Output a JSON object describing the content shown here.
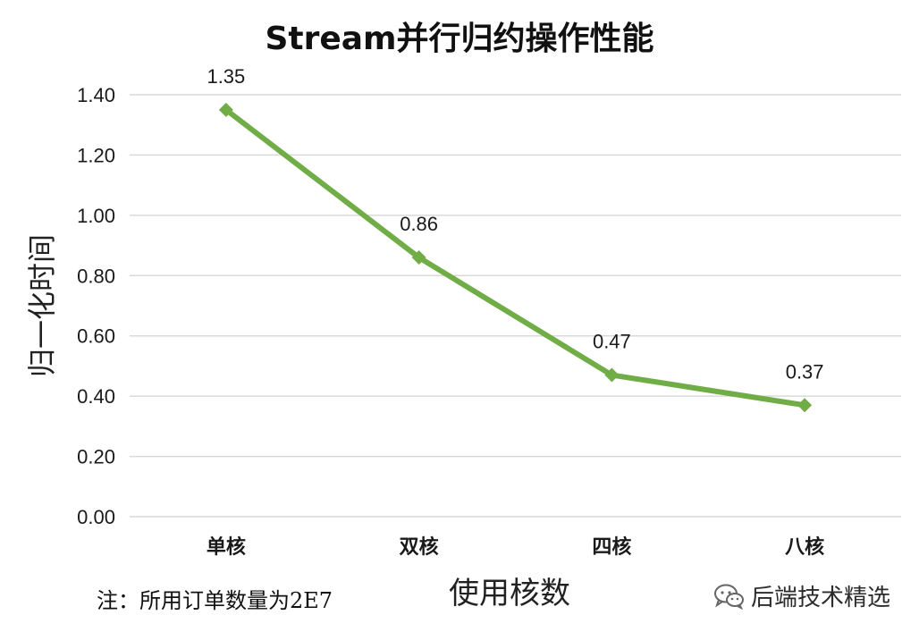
{
  "chart_data": {
    "type": "line",
    "title": "Stream并行归约操作性能",
    "xlabel": "使用核数",
    "ylabel": "归一化时间",
    "categories": [
      "单核",
      "双核",
      "四核",
      "八核"
    ],
    "series": [
      {
        "values": [
          1.35,
          0.86,
          0.47,
          0.37
        ],
        "data_labels": [
          "1.35",
          "0.86",
          "0.47",
          "0.37"
        ],
        "color": "#70ad47",
        "marker": "diamond"
      }
    ],
    "ylim": [
      0,
      1.4
    ],
    "yticks": [
      "0.00",
      "0.20",
      "0.40",
      "0.60",
      "0.80",
      "1.00",
      "1.20",
      "1.40"
    ],
    "grid": true,
    "legend": "none"
  },
  "footnote": "注：所用订单数量为2E7",
  "watermark": {
    "text": "后端技术精选",
    "icon": "wechat-icon"
  },
  "colors": {
    "series": "#70ad47",
    "grid": "#d9d9d9",
    "text": "#1a1a1a"
  }
}
